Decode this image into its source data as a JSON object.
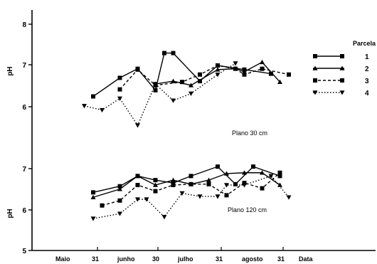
{
  "chart_data": [
    {
      "type": "line",
      "ylabel": "pH",
      "yticks": [
        6,
        7,
        8
      ],
      "ylim": [
        5.5,
        8.2
      ],
      "annotation": "Plano 30 cm",
      "series": [
        {
          "name": "1",
          "x": [
            0,
            3,
            5,
            7,
            8,
            9,
            12,
            14,
            17,
            20
          ],
          "y": [
            6.25,
            6.7,
            6.92,
            6.4,
            7.3,
            7.3,
            6.62,
            7.0,
            6.9,
            6.8
          ]
        },
        {
          "name": "2",
          "x": [
            7,
            9,
            11,
            14,
            16,
            17,
            19,
            21
          ],
          "y": [
            6.55,
            6.62,
            6.52,
            6.9,
            6.92,
            6.85,
            7.08,
            6.6
          ]
        },
        {
          "name": "3",
          "x": [
            3,
            5,
            7,
            10,
            12,
            14,
            16,
            17,
            19,
            22
          ],
          "y": [
            6.42,
            6.9,
            6.52,
            6.6,
            6.78,
            7.0,
            6.92,
            6.78,
            6.92,
            6.78
          ]
        },
        {
          "name": "4",
          "x": [
            -1,
            1,
            3,
            5,
            7,
            9,
            11,
            14,
            16
          ],
          "y": [
            6.02,
            5.92,
            6.2,
            5.55,
            6.55,
            6.15,
            6.32,
            6.78,
            7.05
          ]
        }
      ]
    },
    {
      "type": "line",
      "ylabel": "pH",
      "yticks": [
        5,
        6,
        7
      ],
      "ylim": [
        5.0,
        7.55
      ],
      "annotation": "Plano 120 cm",
      "series": [
        {
          "name": "1",
          "x": [
            0,
            3,
            5,
            7,
            9,
            11,
            14,
            16,
            18,
            21
          ],
          "y": [
            6.42,
            6.57,
            6.82,
            6.72,
            6.65,
            6.82,
            7.05,
            6.62,
            7.05,
            6.82
          ]
        },
        {
          "name": "2",
          "x": [
            0,
            3,
            5,
            7,
            9,
            11,
            13,
            15,
            17,
            19,
            21
          ],
          "y": [
            6.3,
            6.5,
            6.82,
            6.6,
            6.72,
            6.62,
            6.72,
            6.88,
            6.9,
            6.9,
            6.6
          ]
        },
        {
          "name": "3",
          "x": [
            1,
            3,
            5,
            7,
            9,
            11,
            13,
            15,
            17,
            19,
            21
          ],
          "y": [
            6.1,
            6.22,
            6.6,
            6.45,
            6.6,
            6.62,
            6.62,
            6.35,
            6.65,
            6.52,
            6.9
          ]
        },
        {
          "name": "4",
          "x": [
            0,
            3,
            5,
            6,
            8,
            10,
            12,
            14,
            15,
            17,
            20,
            22
          ],
          "y": [
            5.78,
            5.9,
            6.25,
            6.25,
            5.82,
            6.4,
            6.32,
            6.32,
            6.6,
            6.6,
            6.82,
            6.3
          ]
        }
      ]
    }
  ],
  "xaxis": {
    "labels": [
      "Maio",
      "31",
      "junho",
      "30",
      "julho",
      "31",
      "agosto",
      "31",
      "Data"
    ]
  },
  "legend": {
    "title": "Parcela",
    "entries": [
      "1",
      "2",
      "3",
      "4"
    ]
  }
}
